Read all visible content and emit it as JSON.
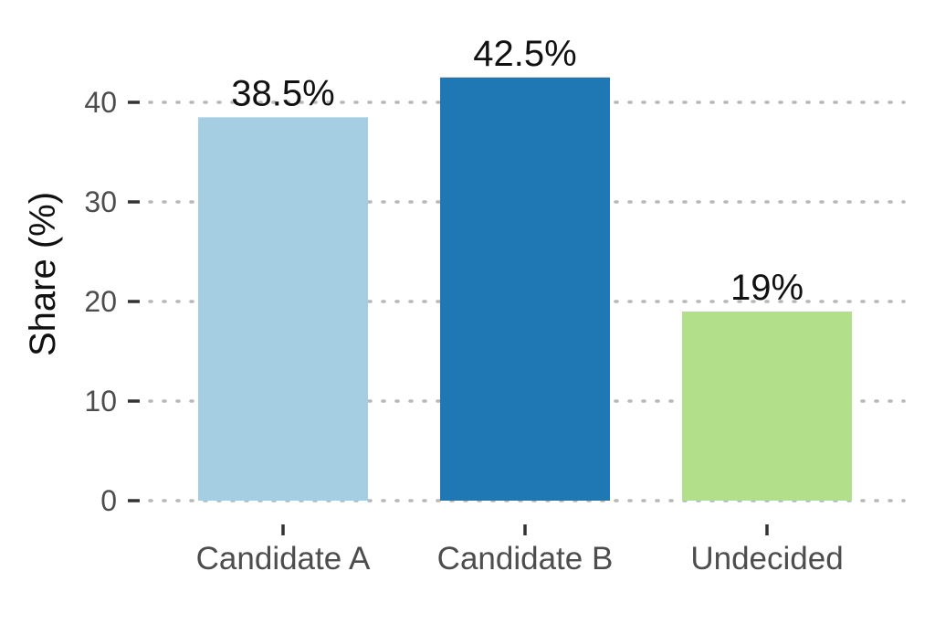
{
  "chart_data": {
    "type": "bar",
    "categories": [
      "Candidate A",
      "Candidate B",
      "Undecided"
    ],
    "values": [
      38.5,
      42.5,
      19
    ],
    "data_labels": [
      "38.5%",
      "42.5%",
      "19%"
    ],
    "colors": [
      "#a6cee3",
      "#1f78b4",
      "#b2df8a"
    ],
    "title": "",
    "xlabel": "",
    "ylabel": "Share (%)",
    "ylim": [
      0,
      43
    ],
    "yticks": [
      0,
      10,
      20,
      30,
      40
    ],
    "ytick_labels": [
      "0",
      "10",
      "20",
      "30",
      "40"
    ],
    "grid": "horizontal dotted",
    "legend": "none"
  }
}
